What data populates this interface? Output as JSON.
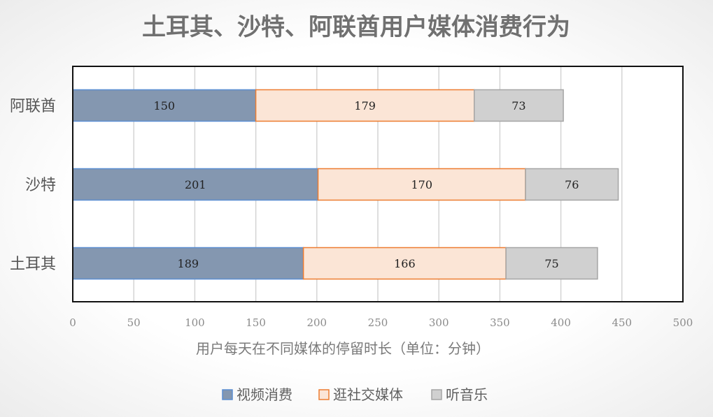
{
  "chart_data": {
    "type": "bar",
    "orientation": "horizontal",
    "stacked": true,
    "title": "土耳其、沙特、阿联酋用户媒体消费行为",
    "xlabel": "用户每天在不同媒体的停留时长（单位：分钟）",
    "ylabel": "",
    "xlim": [
      0,
      500
    ],
    "x_ticks": [
      "0",
      "50",
      "100",
      "150",
      "200",
      "250",
      "300",
      "350",
      "400",
      "450",
      "500"
    ],
    "grid": true,
    "legend_position": "bottom",
    "categories": [
      "阿联酋",
      "沙特",
      "土耳其"
    ],
    "series": [
      {
        "name": "视频消费",
        "values": [
          150,
          201,
          189
        ],
        "color": "#8497b0",
        "stroke": "#5b8ed1"
      },
      {
        "name": "逛社交媒体",
        "values": [
          179,
          170,
          166
        ],
        "color": "#fbe5d6",
        "stroke": "#ed7d31"
      },
      {
        "name": "听音乐",
        "values": [
          73,
          76,
          75
        ],
        "color": "#d0d0d0",
        "stroke": "#a5a5a5"
      }
    ]
  }
}
